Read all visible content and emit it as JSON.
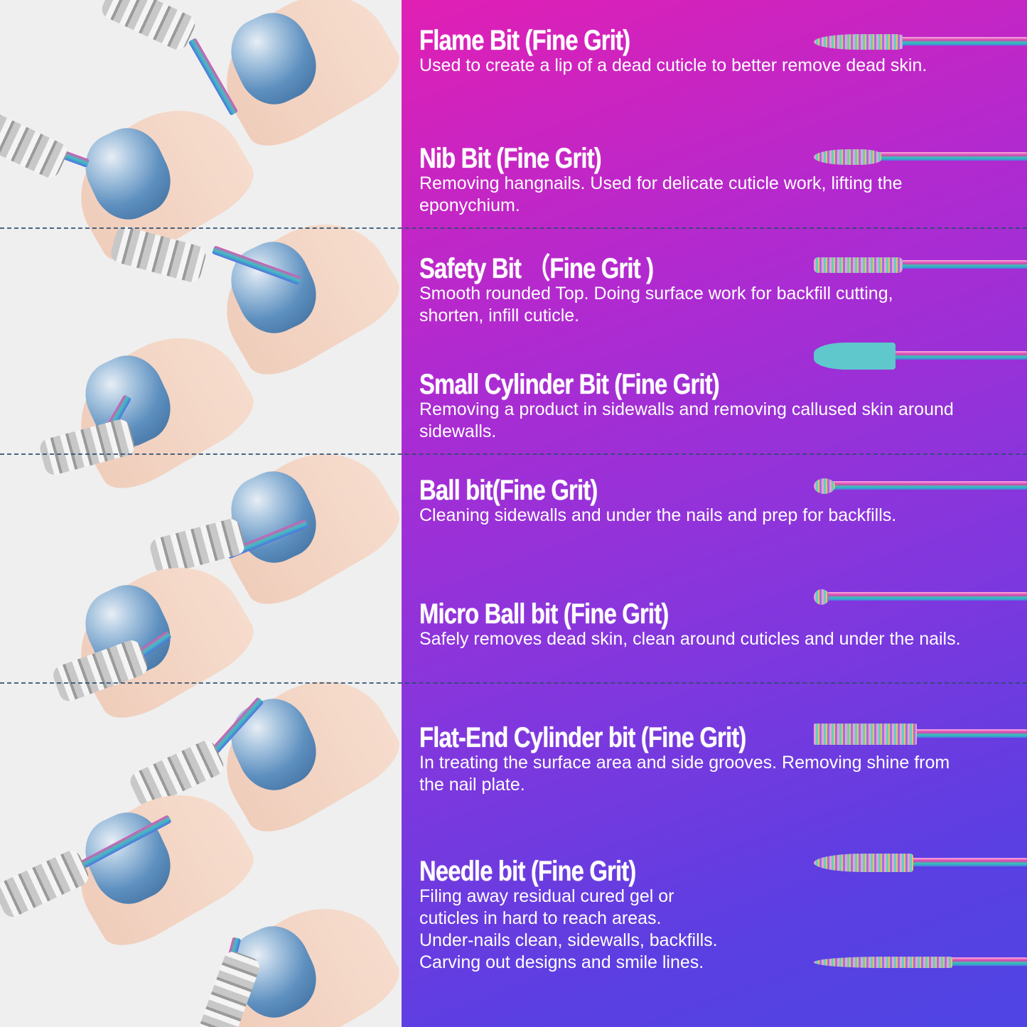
{
  "colors": {
    "gradient_top": "#e11fb4",
    "gradient_bottom": "#4f45e4",
    "left_bg": "#efefef",
    "divider": "#2b4d6e"
  },
  "bits": [
    {
      "title": "Flame Bit (Fine Grit)",
      "description": "Used to create a lip of a dead cuticle to better remove dead skin."
    },
    {
      "title": "Nib Bit (Fine Grit)",
      "description": "Removing hangnails. Used for delicate cuticle work, lifting the\neponychium."
    },
    {
      "title": "Safety Bit （Fine Grit )",
      "description": "Smooth rounded Top. Doing surface work for backfill cutting,\nshorten, infill cuticle."
    },
    {
      "title": "Small Cylinder Bit (Fine Grit)",
      "description": "Removing a product in sidewalls and removing callused skin around\nsidewalls."
    },
    {
      "title": "Ball bit(Fine Grit)",
      "description": "Cleaning sidewalls and under the nails and prep for backfills."
    },
    {
      "title": "Micro Ball bit  (Fine Grit)",
      "description": "Safely removes dead skin, clean around cuticles and under the nails."
    },
    {
      "title": "Flat-End Cylinder bit (Fine Grit)",
      "description": "In treating the surface area and side grooves. Removing shine from\nthe nail plate."
    },
    {
      "title": "Needle bit (Fine Grit)",
      "description": "Filing away residual cured gel or\ncuticles in hard to reach areas.\nUnder-nails clean, sidewalls, backfills.\nCarving out designs and smile lines."
    }
  ]
}
